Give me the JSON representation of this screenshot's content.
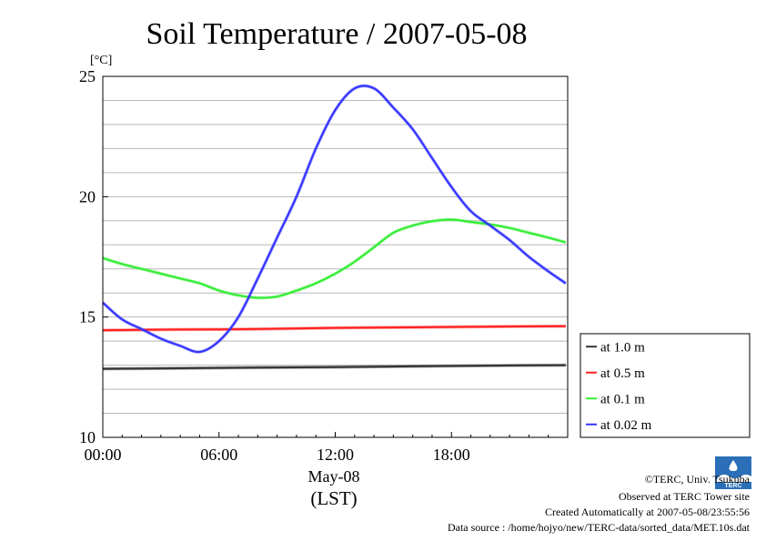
{
  "chart_data": {
    "type": "line",
    "title": "Soil Temperature / 2007-05-08",
    "ylabel": "[°C]",
    "xlabel_date": "May-08",
    "xlabel_tz": "(LST)",
    "xlim": [
      0,
      24
    ],
    "ylim": [
      10,
      25
    ],
    "y_ticks": [
      10,
      15,
      20,
      25
    ],
    "x_ticks": [
      {
        "x": 0,
        "label": "00:00"
      },
      {
        "x": 6,
        "label": "06:00"
      },
      {
        "x": 12,
        "label": "12:00"
      },
      {
        "x": 18,
        "label": "18:00"
      }
    ],
    "grid": true,
    "legend_position": "right",
    "series": [
      {
        "name": "at 1.0 m",
        "color": "#333333",
        "x": [
          0,
          4,
          8,
          12,
          16,
          20,
          23.9
        ],
        "y": [
          12.85,
          12.87,
          12.9,
          12.92,
          12.95,
          12.98,
          13.0
        ]
      },
      {
        "name": "at 0.5 m",
        "color": "#ff2020",
        "x": [
          0,
          4,
          8,
          12,
          16,
          20,
          23.9
        ],
        "y": [
          14.45,
          14.48,
          14.5,
          14.55,
          14.57,
          14.6,
          14.62
        ]
      },
      {
        "name": "at 0.1 m",
        "color": "#33ee33",
        "x": [
          0,
          1,
          2,
          3,
          4,
          5,
          6,
          7,
          8,
          9,
          10,
          11,
          12,
          13,
          14,
          15,
          16,
          17,
          18,
          19,
          20,
          21,
          22,
          23,
          23.9
        ],
        "y": [
          17.45,
          17.2,
          17.0,
          16.8,
          16.6,
          16.4,
          16.1,
          15.9,
          15.8,
          15.85,
          16.1,
          16.4,
          16.8,
          17.3,
          17.9,
          18.5,
          18.8,
          18.98,
          19.05,
          18.95,
          18.85,
          18.7,
          18.5,
          18.3,
          18.1
        ]
      },
      {
        "name": "at 0.02 m",
        "color": "#3333ff",
        "x": [
          0,
          1,
          2,
          3,
          4,
          5,
          6,
          7,
          8,
          9,
          10,
          11,
          12,
          13,
          14,
          15,
          16,
          17,
          18,
          19,
          20,
          21,
          22,
          23,
          23.9
        ],
        "y": [
          15.6,
          14.9,
          14.5,
          14.1,
          13.8,
          13.55,
          14.0,
          15.0,
          16.6,
          18.3,
          20.0,
          22.0,
          23.6,
          24.5,
          24.5,
          23.7,
          22.8,
          21.6,
          20.4,
          19.4,
          18.8,
          18.2,
          17.5,
          16.9,
          16.4
        ]
      }
    ]
  },
  "credits": {
    "copyright": "©TERC, Univ. Tsukuba",
    "observed": "Observed at TERC Tower site",
    "created": "Created Automatically at 2007-05-08/23:55:56",
    "source": "Data source : /home/hojyo/new/TERC-data/sorted_data/MET.10s.dat"
  },
  "logo_text": "TERC"
}
